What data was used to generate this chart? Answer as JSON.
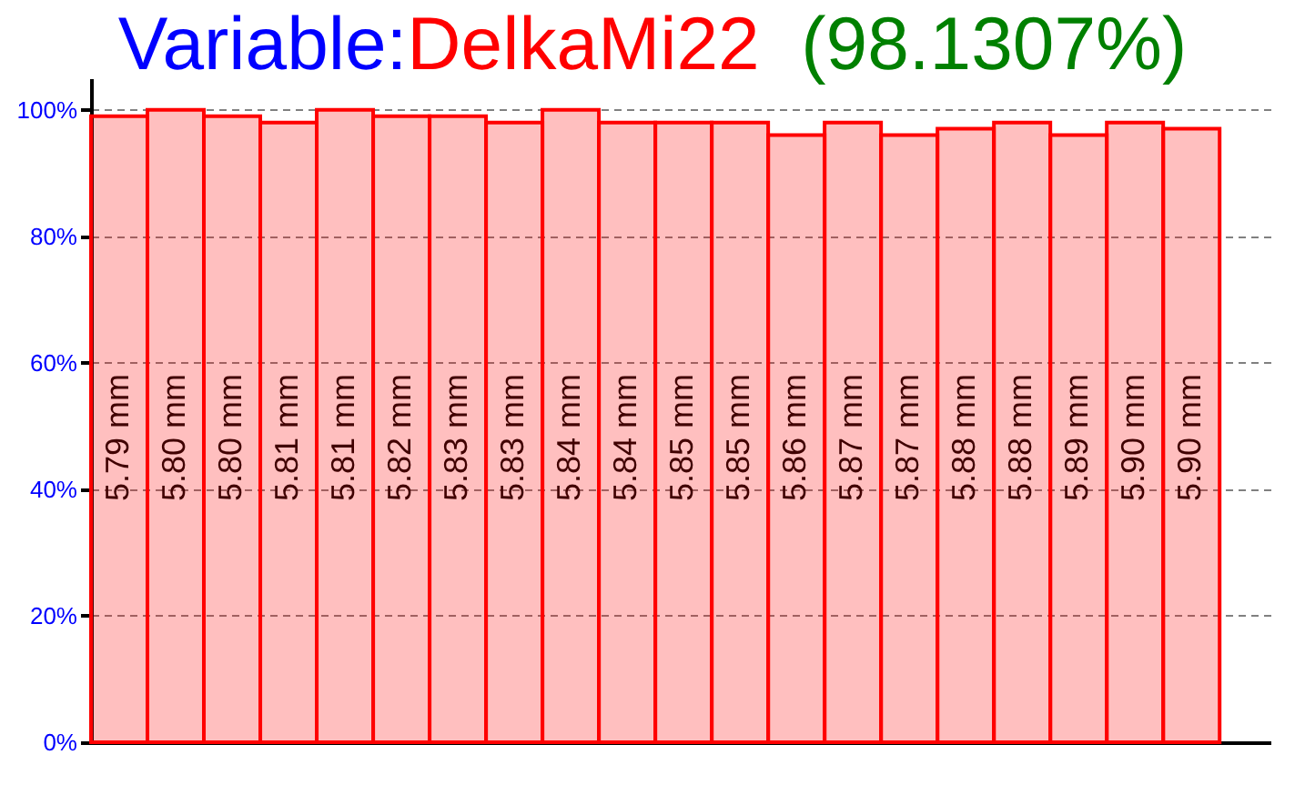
{
  "chart_data": {
    "type": "bar",
    "title": "Variable:DelkaMi22",
    "annotations": [
      "(98.1307%)"
    ],
    "categories": [
      "5.79 mm",
      "5.80 mm",
      "5.80 mm",
      "5.81 mm",
      "5.81 mm",
      "5.82 mm",
      "5.83 mm",
      "5.83 mm",
      "5.84 mm",
      "5.84 mm",
      "5.85 mm",
      "5.85 mm",
      "5.86 mm",
      "5.87 mm",
      "5.87 mm",
      "5.88 mm",
      "5.88 mm",
      "5.89 mm",
      "5.90 mm",
      "5.90 mm"
    ],
    "values": [
      99,
      100,
      99,
      98,
      100,
      99,
      99,
      98,
      100,
      98,
      98,
      98,
      96,
      98,
      96,
      97,
      98,
      96,
      98,
      97
    ],
    "color": "#ff0000",
    "ylim": [
      0,
      105
    ],
    "yticks": [
      {
        "value": 0,
        "label": "0%"
      },
      {
        "value": 20,
        "label": "20%"
      },
      {
        "value": 40,
        "label": "40%"
      },
      {
        "value": 60,
        "label": "60%"
      },
      {
        "value": 80,
        "label": "80%"
      },
      {
        "value": 100,
        "label": "100%"
      }
    ],
    "grid": "y"
  }
}
